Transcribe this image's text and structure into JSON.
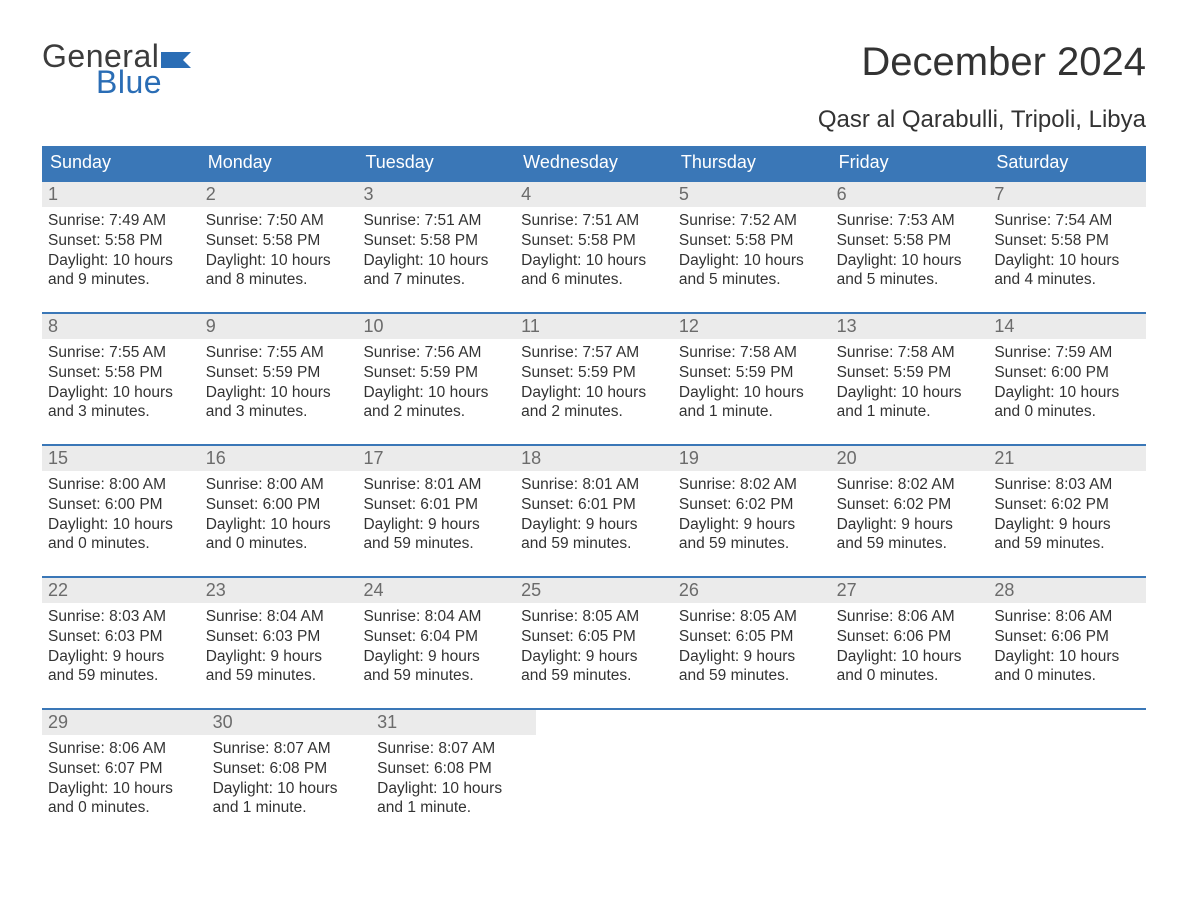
{
  "logo": {
    "word1": "General",
    "word2": "Blue",
    "flag_color": "#2a6db5",
    "word1_color": "#3c3c3c",
    "word2_color": "#2a6db5"
  },
  "header": {
    "month_title": "December 2024",
    "location": "Qasr al Qarabulli, Tripoli, Libya"
  },
  "colors": {
    "header_bg": "#3a77b7",
    "header_text": "#ffffff",
    "row_border": "#3a77b7",
    "daynum_bg": "#ebebeb",
    "daynum_text": "#6b6b6b",
    "body_text": "#333333",
    "background": "#ffffff"
  },
  "weekdays": [
    "Sunday",
    "Monday",
    "Tuesday",
    "Wednesday",
    "Thursday",
    "Friday",
    "Saturday"
  ],
  "weeks": [
    [
      {
        "n": "1",
        "sunrise": "Sunrise: 7:49 AM",
        "sunset": "Sunset: 5:58 PM",
        "d1": "Daylight: 10 hours",
        "d2": "and 9 minutes."
      },
      {
        "n": "2",
        "sunrise": "Sunrise: 7:50 AM",
        "sunset": "Sunset: 5:58 PM",
        "d1": "Daylight: 10 hours",
        "d2": "and 8 minutes."
      },
      {
        "n": "3",
        "sunrise": "Sunrise: 7:51 AM",
        "sunset": "Sunset: 5:58 PM",
        "d1": "Daylight: 10 hours",
        "d2": "and 7 minutes."
      },
      {
        "n": "4",
        "sunrise": "Sunrise: 7:51 AM",
        "sunset": "Sunset: 5:58 PM",
        "d1": "Daylight: 10 hours",
        "d2": "and 6 minutes."
      },
      {
        "n": "5",
        "sunrise": "Sunrise: 7:52 AM",
        "sunset": "Sunset: 5:58 PM",
        "d1": "Daylight: 10 hours",
        "d2": "and 5 minutes."
      },
      {
        "n": "6",
        "sunrise": "Sunrise: 7:53 AM",
        "sunset": "Sunset: 5:58 PM",
        "d1": "Daylight: 10 hours",
        "d2": "and 5 minutes."
      },
      {
        "n": "7",
        "sunrise": "Sunrise: 7:54 AM",
        "sunset": "Sunset: 5:58 PM",
        "d1": "Daylight: 10 hours",
        "d2": "and 4 minutes."
      }
    ],
    [
      {
        "n": "8",
        "sunrise": "Sunrise: 7:55 AM",
        "sunset": "Sunset: 5:58 PM",
        "d1": "Daylight: 10 hours",
        "d2": "and 3 minutes."
      },
      {
        "n": "9",
        "sunrise": "Sunrise: 7:55 AM",
        "sunset": "Sunset: 5:59 PM",
        "d1": "Daylight: 10 hours",
        "d2": "and 3 minutes."
      },
      {
        "n": "10",
        "sunrise": "Sunrise: 7:56 AM",
        "sunset": "Sunset: 5:59 PM",
        "d1": "Daylight: 10 hours",
        "d2": "and 2 minutes."
      },
      {
        "n": "11",
        "sunrise": "Sunrise: 7:57 AM",
        "sunset": "Sunset: 5:59 PM",
        "d1": "Daylight: 10 hours",
        "d2": "and 2 minutes."
      },
      {
        "n": "12",
        "sunrise": "Sunrise: 7:58 AM",
        "sunset": "Sunset: 5:59 PM",
        "d1": "Daylight: 10 hours",
        "d2": "and 1 minute."
      },
      {
        "n": "13",
        "sunrise": "Sunrise: 7:58 AM",
        "sunset": "Sunset: 5:59 PM",
        "d1": "Daylight: 10 hours",
        "d2": "and 1 minute."
      },
      {
        "n": "14",
        "sunrise": "Sunrise: 7:59 AM",
        "sunset": "Sunset: 6:00 PM",
        "d1": "Daylight: 10 hours",
        "d2": "and 0 minutes."
      }
    ],
    [
      {
        "n": "15",
        "sunrise": "Sunrise: 8:00 AM",
        "sunset": "Sunset: 6:00 PM",
        "d1": "Daylight: 10 hours",
        "d2": "and 0 minutes."
      },
      {
        "n": "16",
        "sunrise": "Sunrise: 8:00 AM",
        "sunset": "Sunset: 6:00 PM",
        "d1": "Daylight: 10 hours",
        "d2": "and 0 minutes."
      },
      {
        "n": "17",
        "sunrise": "Sunrise: 8:01 AM",
        "sunset": "Sunset: 6:01 PM",
        "d1": "Daylight: 9 hours",
        "d2": "and 59 minutes."
      },
      {
        "n": "18",
        "sunrise": "Sunrise: 8:01 AM",
        "sunset": "Sunset: 6:01 PM",
        "d1": "Daylight: 9 hours",
        "d2": "and 59 minutes."
      },
      {
        "n": "19",
        "sunrise": "Sunrise: 8:02 AM",
        "sunset": "Sunset: 6:02 PM",
        "d1": "Daylight: 9 hours",
        "d2": "and 59 minutes."
      },
      {
        "n": "20",
        "sunrise": "Sunrise: 8:02 AM",
        "sunset": "Sunset: 6:02 PM",
        "d1": "Daylight: 9 hours",
        "d2": "and 59 minutes."
      },
      {
        "n": "21",
        "sunrise": "Sunrise: 8:03 AM",
        "sunset": "Sunset: 6:02 PM",
        "d1": "Daylight: 9 hours",
        "d2": "and 59 minutes."
      }
    ],
    [
      {
        "n": "22",
        "sunrise": "Sunrise: 8:03 AM",
        "sunset": "Sunset: 6:03 PM",
        "d1": "Daylight: 9 hours",
        "d2": "and 59 minutes."
      },
      {
        "n": "23",
        "sunrise": "Sunrise: 8:04 AM",
        "sunset": "Sunset: 6:03 PM",
        "d1": "Daylight: 9 hours",
        "d2": "and 59 minutes."
      },
      {
        "n": "24",
        "sunrise": "Sunrise: 8:04 AM",
        "sunset": "Sunset: 6:04 PM",
        "d1": "Daylight: 9 hours",
        "d2": "and 59 minutes."
      },
      {
        "n": "25",
        "sunrise": "Sunrise: 8:05 AM",
        "sunset": "Sunset: 6:05 PM",
        "d1": "Daylight: 9 hours",
        "d2": "and 59 minutes."
      },
      {
        "n": "26",
        "sunrise": "Sunrise: 8:05 AM",
        "sunset": "Sunset: 6:05 PM",
        "d1": "Daylight: 9 hours",
        "d2": "and 59 minutes."
      },
      {
        "n": "27",
        "sunrise": "Sunrise: 8:06 AM",
        "sunset": "Sunset: 6:06 PM",
        "d1": "Daylight: 10 hours",
        "d2": "and 0 minutes."
      },
      {
        "n": "28",
        "sunrise": "Sunrise: 8:06 AM",
        "sunset": "Sunset: 6:06 PM",
        "d1": "Daylight: 10 hours",
        "d2": "and 0 minutes."
      }
    ],
    [
      {
        "n": "29",
        "sunrise": "Sunrise: 8:06 AM",
        "sunset": "Sunset: 6:07 PM",
        "d1": "Daylight: 10 hours",
        "d2": "and 0 minutes."
      },
      {
        "n": "30",
        "sunrise": "Sunrise: 8:07 AM",
        "sunset": "Sunset: 6:08 PM",
        "d1": "Daylight: 10 hours",
        "d2": "and 1 minute."
      },
      {
        "n": "31",
        "sunrise": "Sunrise: 8:07 AM",
        "sunset": "Sunset: 6:08 PM",
        "d1": "Daylight: 10 hours",
        "d2": "and 1 minute."
      },
      null,
      null,
      null,
      null
    ]
  ]
}
